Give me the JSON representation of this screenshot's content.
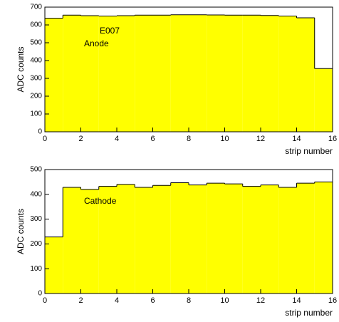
{
  "chart_data": [
    {
      "type": "histogram",
      "bins": [
        0,
        1,
        2,
        3,
        4,
        5,
        6,
        7,
        8,
        9,
        10,
        11,
        12,
        13,
        14,
        15,
        16
      ],
      "values": [
        638,
        655,
        652,
        650,
        652,
        655,
        655,
        657,
        657,
        656,
        655,
        655,
        653,
        650,
        640,
        355
      ],
      "color": "#ffff00",
      "xlim": [
        0,
        16
      ],
      "xticks": [
        0,
        2,
        4,
        6,
        8,
        10,
        12,
        14,
        16
      ],
      "ylim": [
        0,
        700
      ],
      "yticks": [
        0,
        100,
        200,
        300,
        400,
        500,
        600,
        700
      ],
      "xlabel": "strip number",
      "ylabel": "ADC counts",
      "annotations": [
        "E007",
        "Anode"
      ]
    },
    {
      "type": "histogram",
      "bins": [
        0,
        1,
        2,
        3,
        4,
        5,
        6,
        7,
        8,
        9,
        10,
        11,
        12,
        13,
        14,
        15,
        16
      ],
      "values": [
        228,
        428,
        420,
        432,
        440,
        428,
        436,
        447,
        438,
        445,
        442,
        432,
        438,
        428,
        445,
        450
      ],
      "color": "#ffff00",
      "xlim": [
        0,
        16
      ],
      "xticks": [
        0,
        2,
        4,
        6,
        8,
        10,
        12,
        14,
        16
      ],
      "ylim": [
        0,
        500
      ],
      "yticks": [
        0,
        100,
        200,
        300,
        400,
        500
      ],
      "xlabel": "strip number",
      "ylabel": "ADC counts",
      "annotations": [
        "Cathode"
      ]
    }
  ]
}
